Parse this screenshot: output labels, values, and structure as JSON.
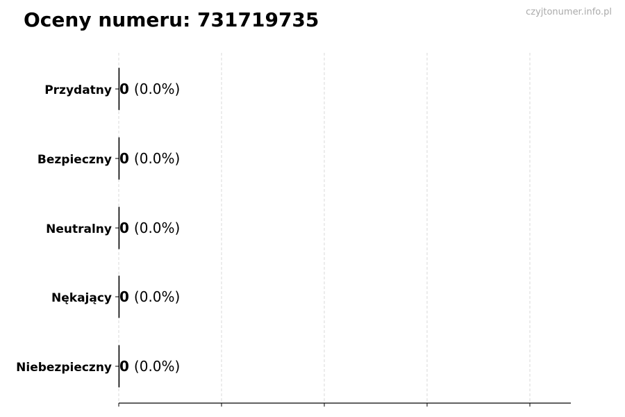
{
  "title": "Oceny numeru: 731719735",
  "watermark": "czyjtonumer.info.pl",
  "chart_data": {
    "type": "bar",
    "orientation": "horizontal",
    "title": "Oceny numeru: 731719735",
    "categories": [
      "Przydatny",
      "Bezpieczny",
      "Neutralny",
      "Nękający",
      "Niebezpieczny"
    ],
    "values": [
      0,
      0,
      0,
      0,
      0
    ],
    "data_labels": [
      {
        "count": "0",
        "percent": "(0.0%)"
      },
      {
        "count": "0",
        "percent": "(0.0%)"
      },
      {
        "count": "0",
        "percent": "(0.0%)"
      },
      {
        "count": "0",
        "percent": "(0.0%)"
      },
      {
        "count": "0",
        "percent": "(0.0%)"
      }
    ],
    "xlabel": "",
    "ylabel": "",
    "x_tick_labels": "none",
    "grid": "vertical dashed",
    "colors": {
      "grid": "#d9d9d9",
      "axis": "#000000",
      "bar_edge": "#000000"
    }
  }
}
